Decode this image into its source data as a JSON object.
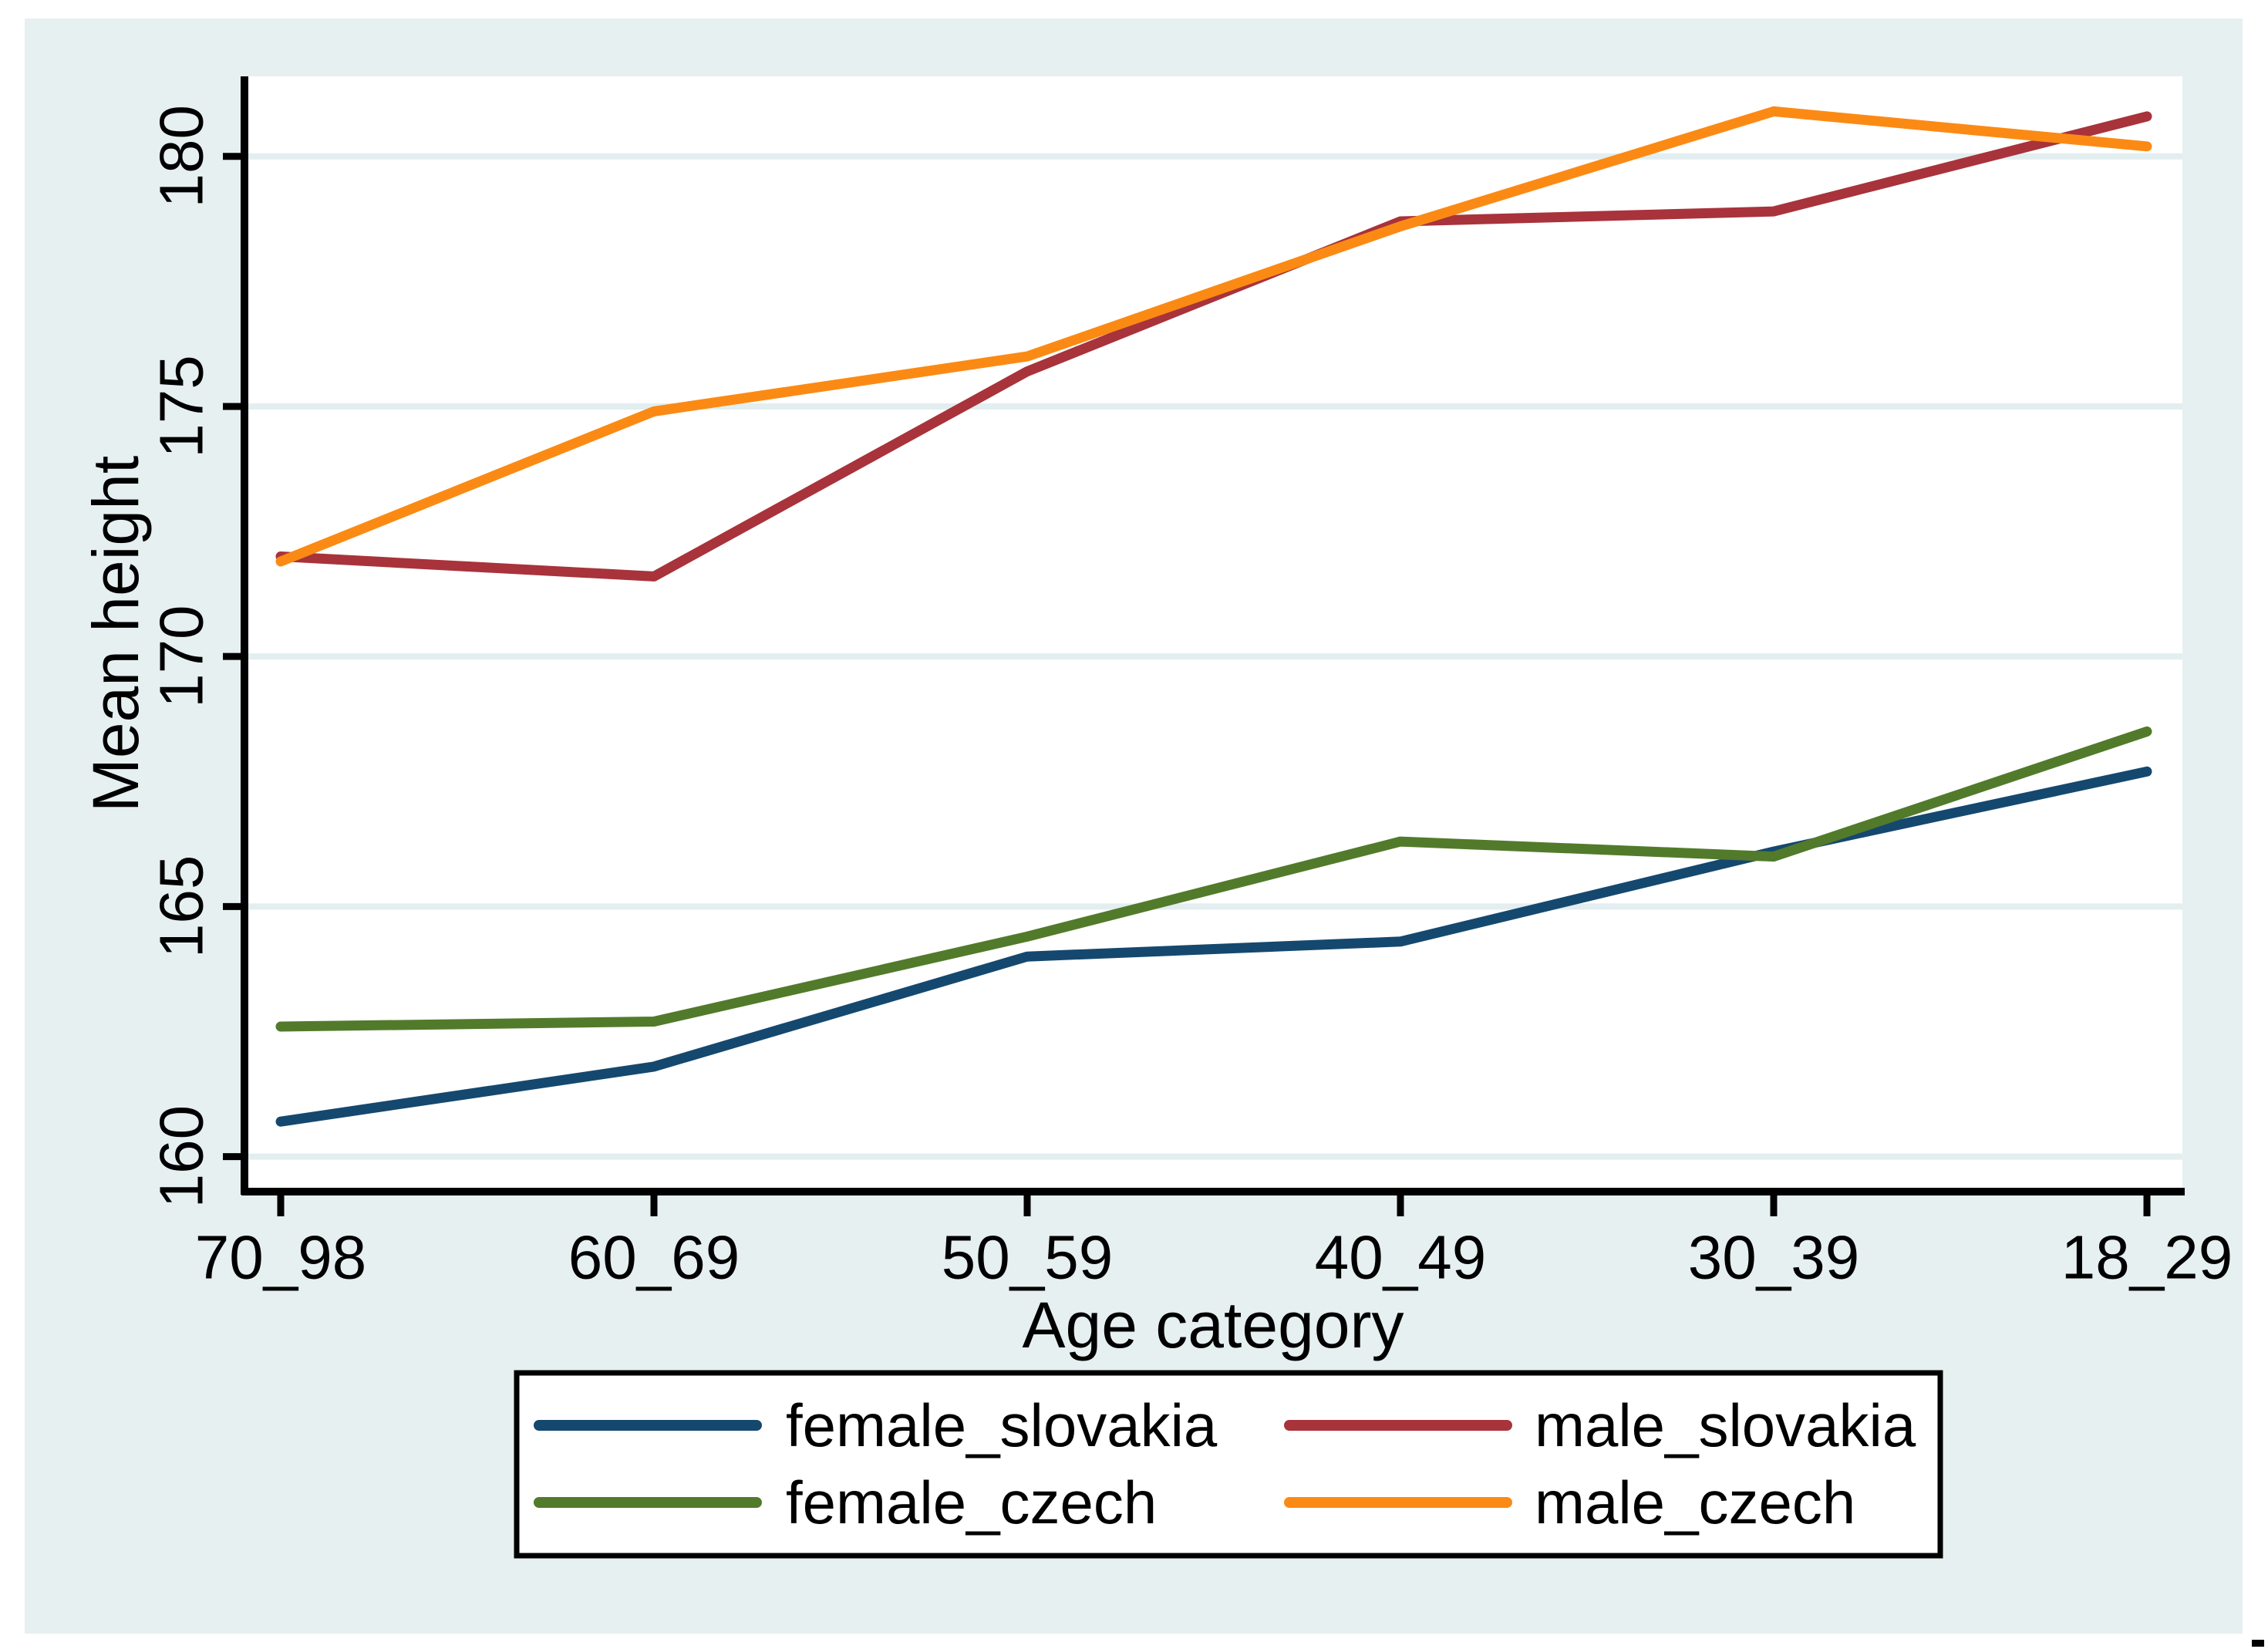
{
  "figure": {
    "background_color": "#e6f0f1",
    "plot_background": "#ffffff",
    "grid_color": "#e2eeef",
    "axis_color": "#000000",
    "text_color": "#000000",
    "legend_border_color": "#000000",
    "legend_background": "#ffffff",
    "corner_artifact": true
  },
  "chart_data": {
    "type": "line",
    "title": "",
    "xlabel": "Age category",
    "ylabel": "Mean height",
    "categories": [
      "70_98",
      "60_69",
      "50_59",
      "40_49",
      "30_39",
      "18_29"
    ],
    "y_ticks": [
      160,
      165,
      170,
      175,
      180
    ],
    "ylim": [
      159.3,
      181.6
    ],
    "grid": true,
    "legend_position": "bottom",
    "legend_columns": 2,
    "series": [
      {
        "name": "female_slovakia",
        "color": "#15486e",
        "values": [
          160.7,
          161.8,
          164.0,
          164.3,
          166.1,
          167.7
        ]
      },
      {
        "name": "male_slovakia",
        "color": "#a8333b",
        "values": [
          172.0,
          171.6,
          175.7,
          178.7,
          178.9,
          180.8
        ]
      },
      {
        "name": "female_czech",
        "color": "#527a2b",
        "values": [
          162.6,
          162.7,
          164.4,
          166.3,
          166.0,
          168.5
        ]
      },
      {
        "name": "male_czech",
        "color": "#fb8a14",
        "values": [
          171.9,
          174.9,
          176.0,
          178.6,
          180.9,
          180.2
        ]
      }
    ],
    "legend_order": [
      "female_slovakia",
      "male_slovakia",
      "female_czech",
      "male_czech"
    ]
  }
}
